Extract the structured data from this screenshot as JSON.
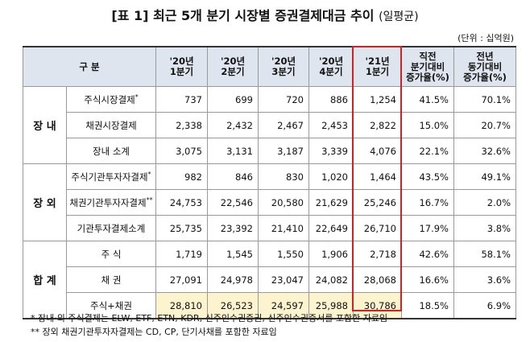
{
  "header": {
    "title": "[표 1] 최근 5개 분기 시장별 증권결제대금 추이",
    "title_note": "(일평균)",
    "unit": "(단위 : 십억원)"
  },
  "table": {
    "columns": [
      [
        "구 분"
      ],
      [
        "'20년",
        "1분기"
      ],
      [
        "'20년",
        "2분기"
      ],
      [
        "'20년",
        "3분기"
      ],
      [
        "'20년",
        "4분기"
      ],
      [
        "'21년",
        "1분기"
      ],
      [
        "직전",
        "분기대비",
        "증가율(%)"
      ],
      [
        "전년",
        "동기대비",
        "증가율(%)"
      ]
    ],
    "groups": [
      {
        "name": "장 내",
        "rows": [
          {
            "label": "주식시장결제",
            "mark": "*",
            "cells": [
              "737",
              "699",
              "720",
              "886",
              "1,254",
              "41.5%",
              "70.1%"
            ]
          },
          {
            "label": "채권시장결제",
            "cells": [
              "2,338",
              "2,432",
              "2,467",
              "2,453",
              "2,822",
              "15.0%",
              "20.7%"
            ]
          },
          {
            "label": "장내 소계",
            "cells": [
              "3,075",
              "3,131",
              "3,187",
              "3,339",
              "4,076",
              "22.1%",
              "32.6%"
            ]
          }
        ]
      },
      {
        "name": "장 외",
        "rows": [
          {
            "label": "주식기관투자자결제",
            "mark": "*",
            "cells": [
              "982",
              "846",
              "830",
              "1,020",
              "1,464",
              "43.5%",
              "49.1%"
            ]
          },
          {
            "label": "채권기관투자자결제",
            "mark": "**",
            "cells": [
              "24,753",
              "22,546",
              "20,580",
              "21,629",
              "25,246",
              "16.7%",
              "2.0%"
            ]
          },
          {
            "label": "기관투자결제소계",
            "cells": [
              "25,735",
              "23,392",
              "21,410",
              "22,649",
              "26,710",
              "17.9%",
              "3.8%"
            ]
          }
        ]
      },
      {
        "name": "합 계",
        "rows": [
          {
            "label": "주 식",
            "cells": [
              "1,719",
              "1,545",
              "1,550",
              "1,906",
              "2,718",
              "42.6%",
              "58.1%"
            ]
          },
          {
            "label": "채 권",
            "cells": [
              "27,091",
              "24,978",
              "23,047",
              "24,082",
              "28,068",
              "16.6%",
              "3.6%"
            ]
          },
          {
            "label": "주식+채권",
            "cells": [
              "28,810",
              "26,523",
              "24,597",
              "25,988",
              "30,786",
              "18.5%",
              "6.9%"
            ]
          }
        ]
      }
    ]
  },
  "notes": [
    "*  장내·외 주식결제는 ELW, ETF, ETN, KDR, 신주인수권증권, 신주인수권증서를 포함한 자료임",
    "**  장외 채권기관투자자결제는 CD, CP, 단기사채를 포함한 자료임"
  ]
}
